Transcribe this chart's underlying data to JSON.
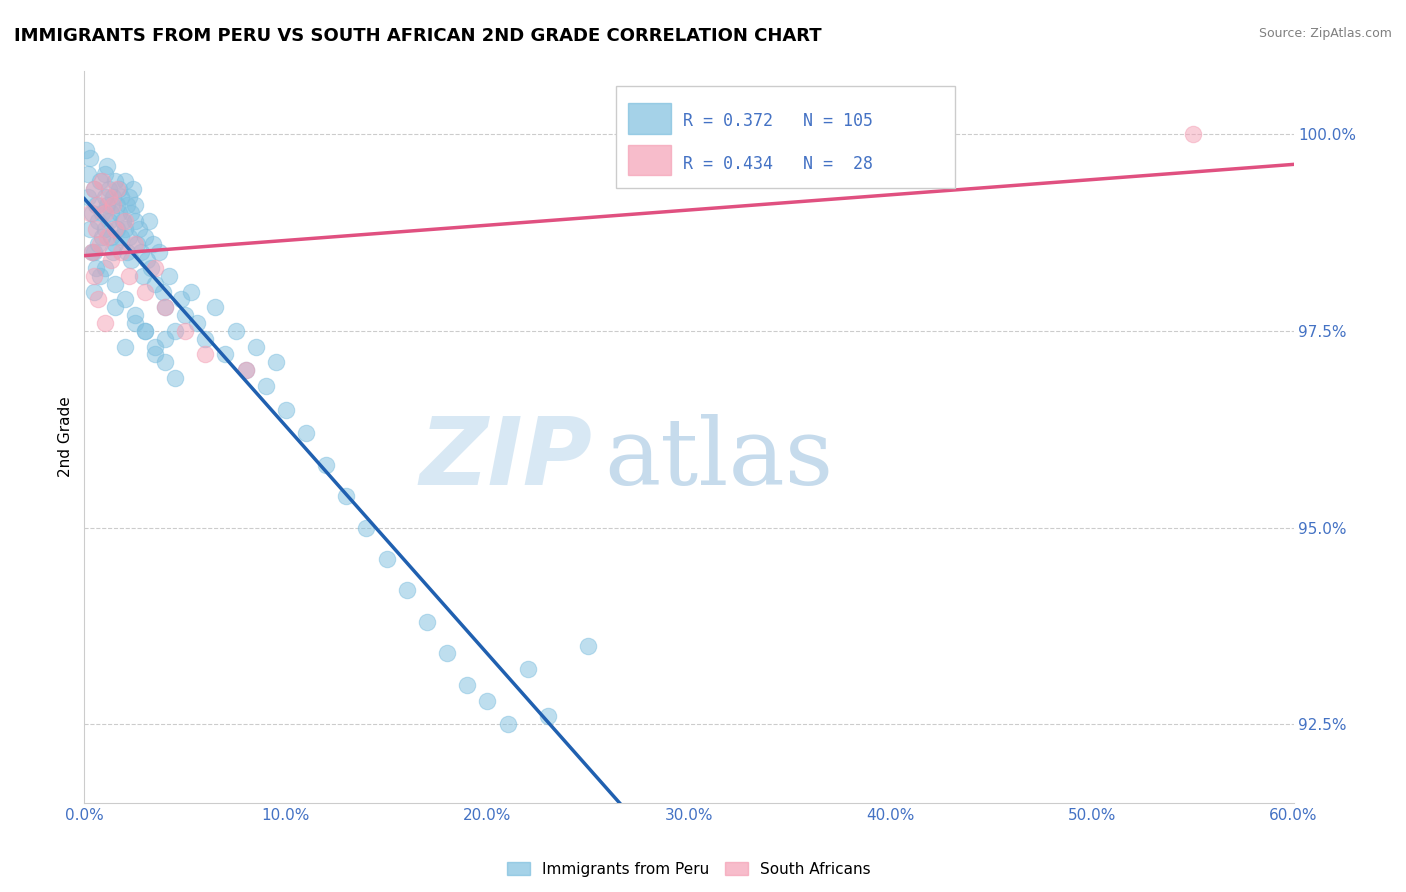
{
  "title": "IMMIGRANTS FROM PERU VS SOUTH AFRICAN 2ND GRADE CORRELATION CHART",
  "source": "Source: ZipAtlas.com",
  "xlabel_label": "Immigrants from Peru",
  "ylabel_label": "2nd Grade",
  "legend_label1": "Immigrants from Peru",
  "legend_label2": "South Africans",
  "R1": 0.372,
  "N1": 105,
  "R2": 0.434,
  "N2": 28,
  "color1": "#7fbfdf",
  "color2": "#f4a0b5",
  "trendline_color1": "#2060b0",
  "trendline_color2": "#e05080",
  "xlim": [
    0.0,
    60.0
  ],
  "ylim": [
    91.5,
    100.8
  ],
  "yticks": [
    92.5,
    95.0,
    97.5,
    100.0
  ],
  "xticks": [
    0.0,
    10.0,
    20.0,
    30.0,
    40.0,
    50.0,
    60.0
  ],
  "watermark_zip": "ZIP",
  "watermark_atlas": "atlas",
  "title_fontsize": 13,
  "axis_label_color": "#4472c4",
  "tick_label_color": "#4472c4",
  "blue_points_x": [
    0.1,
    0.2,
    0.2,
    0.3,
    0.3,
    0.4,
    0.4,
    0.5,
    0.5,
    0.6,
    0.6,
    0.7,
    0.7,
    0.8,
    0.8,
    0.9,
    0.9,
    1.0,
    1.0,
    1.0,
    1.1,
    1.1,
    1.2,
    1.2,
    1.3,
    1.3,
    1.4,
    1.4,
    1.5,
    1.5,
    1.6,
    1.6,
    1.7,
    1.7,
    1.8,
    1.8,
    1.9,
    2.0,
    2.0,
    2.1,
    2.1,
    2.2,
    2.2,
    2.3,
    2.3,
    2.4,
    2.5,
    2.5,
    2.6,
    2.7,
    2.8,
    2.9,
    3.0,
    3.1,
    3.2,
    3.3,
    3.4,
    3.5,
    3.7,
    3.9,
    4.0,
    4.2,
    4.5,
    4.8,
    5.0,
    5.3,
    5.6,
    6.0,
    6.5,
    7.0,
    7.5,
    8.0,
    8.5,
    9.0,
    9.5,
    10.0,
    11.0,
    12.0,
    13.0,
    14.0,
    15.0,
    16.0,
    17.0,
    18.0,
    19.0,
    20.0,
    21.0,
    22.0,
    23.0,
    25.0,
    1.5,
    2.0,
    2.5,
    3.0,
    3.5,
    4.0,
    0.5,
    1.0,
    1.5,
    2.0,
    2.5,
    3.0,
    3.5,
    4.0,
    4.5
  ],
  "blue_points_y": [
    99.8,
    99.5,
    99.2,
    99.7,
    98.8,
    99.0,
    98.5,
    99.3,
    98.0,
    99.1,
    98.3,
    98.9,
    98.6,
    99.4,
    98.2,
    98.7,
    99.0,
    99.5,
    99.2,
    98.8,
    99.6,
    99.1,
    99.3,
    98.9,
    99.0,
    98.7,
    98.5,
    99.2,
    99.4,
    98.6,
    99.1,
    98.8,
    99.3,
    99.0,
    98.7,
    99.2,
    98.9,
    99.4,
    98.8,
    99.1,
    98.5,
    99.2,
    98.7,
    99.0,
    98.4,
    99.3,
    98.9,
    99.1,
    98.6,
    98.8,
    98.5,
    98.2,
    98.7,
    98.4,
    98.9,
    98.3,
    98.6,
    98.1,
    98.5,
    98.0,
    97.8,
    98.2,
    97.5,
    97.9,
    97.7,
    98.0,
    97.6,
    97.4,
    97.8,
    97.2,
    97.5,
    97.0,
    97.3,
    96.8,
    97.1,
    96.5,
    96.2,
    95.8,
    95.4,
    95.0,
    94.6,
    94.2,
    93.8,
    93.4,
    93.0,
    92.8,
    92.5,
    93.2,
    92.6,
    93.5,
    97.8,
    97.3,
    97.6,
    97.5,
    97.2,
    97.4,
    98.5,
    98.3,
    98.1,
    97.9,
    97.7,
    97.5,
    97.3,
    97.1,
    96.9
  ],
  "pink_points_x": [
    0.3,
    0.4,
    0.5,
    0.6,
    0.7,
    0.8,
    0.9,
    1.0,
    1.1,
    1.2,
    1.3,
    1.4,
    1.5,
    1.6,
    1.8,
    2.0,
    2.2,
    2.5,
    3.0,
    3.5,
    4.0,
    5.0,
    6.0,
    8.0,
    0.5,
    0.7,
    1.0,
    55.0
  ],
  "pink_points_y": [
    99.0,
    98.5,
    99.3,
    98.8,
    99.1,
    98.6,
    99.4,
    99.0,
    98.7,
    99.2,
    98.4,
    99.1,
    98.8,
    99.3,
    98.5,
    98.9,
    98.2,
    98.6,
    98.0,
    98.3,
    97.8,
    97.5,
    97.2,
    97.0,
    98.2,
    97.9,
    97.6,
    100.0
  ]
}
